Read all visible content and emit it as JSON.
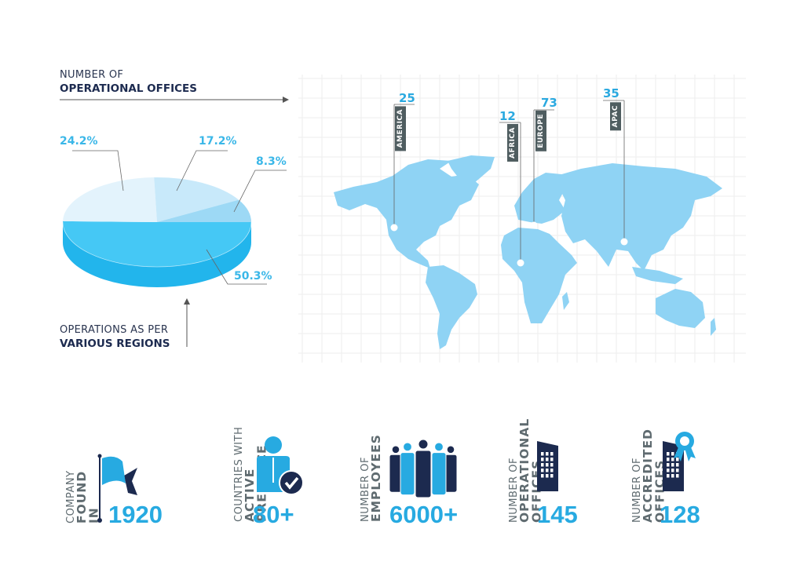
{
  "header": {
    "line1": "NUMBER OF",
    "line2": "OPERATIONAL OFFICES"
  },
  "footer_caption": {
    "line1": "OPERATIONS AS PER",
    "line2": "VARIOUS REGIONS"
  },
  "chart_data": {
    "type": "pie",
    "style": "3d",
    "slices": [
      {
        "label": "50.3%",
        "value": 50.3,
        "color": "#45c8f5"
      },
      {
        "label": "24.2%",
        "value": 24.2,
        "color": "#e3f3fc"
      },
      {
        "label": "17.2%",
        "value": 17.2,
        "color": "#c8e9fa"
      },
      {
        "label": "8.3%",
        "value": 8.3,
        "color": "#9dd9f5"
      }
    ]
  },
  "map": {
    "land_color": "#8fd3f4",
    "regions": [
      {
        "name": "AMERICA",
        "count": "25"
      },
      {
        "name": "AFRICA",
        "count": "12"
      },
      {
        "name": "EUROPE",
        "count": "73"
      },
      {
        "name": "APAC",
        "count": "35"
      }
    ]
  },
  "stats": [
    {
      "line1": "COMPANY",
      "line2": "FOUND IN",
      "value": "1920",
      "icon": "flag-icon"
    },
    {
      "line1": "COUNTRIES WITH",
      "line2": "ACTIVE PRESENCE",
      "value": "80+",
      "icon": "person-check-icon"
    },
    {
      "line1": "NUMBER OF",
      "line2": "EMPLOYEES",
      "value": "6000+",
      "icon": "people-group-icon"
    },
    {
      "line1": "NUMBER OF",
      "line2": "OPERATIONAL OFFICES",
      "value": "145",
      "icon": "building-icon"
    },
    {
      "line1": "NUMBER OF",
      "line2": "ACCREDITED OFFICES",
      "value": "128",
      "icon": "accredited-building-icon"
    }
  ],
  "colors": {
    "accent": "#27aae1",
    "navy": "#1c2a4f",
    "label_bg": "#4f5d60"
  }
}
